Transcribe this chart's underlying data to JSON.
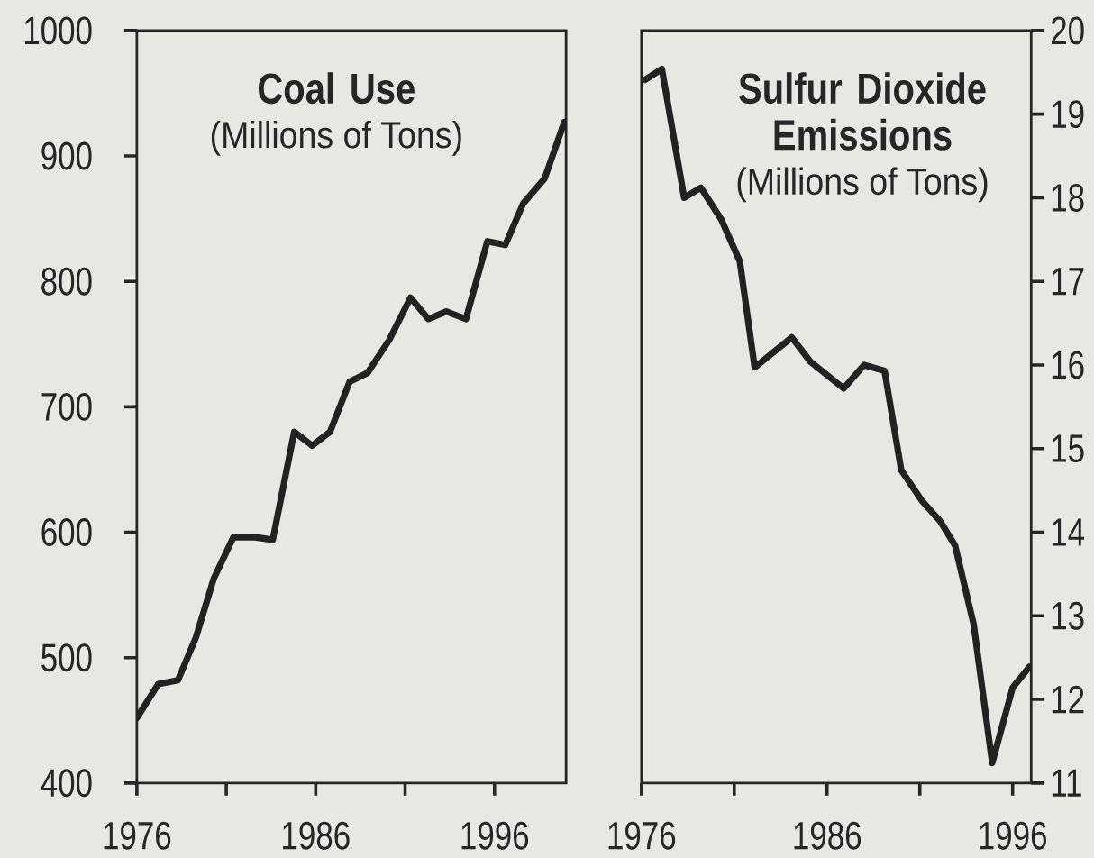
{
  "chart_data": [
    {
      "type": "line",
      "title": "Coal Use",
      "subtitle": "(Millions of Tons)",
      "color": "#222222",
      "x": [
        1976.0,
        1977.2,
        1978.3,
        1979.3,
        1980.3,
        1981.4,
        1982.6,
        1983.6,
        1984.8,
        1985.8,
        1986.8,
        1987.9,
        1988.9,
        1990.1,
        1991.3,
        1992.3,
        1993.3,
        1994.4,
        1995.6,
        1996.6,
        1997.6,
        1998.8,
        1999.9
      ],
      "values": [
        452,
        479,
        482,
        516,
        563,
        596,
        596,
        594,
        680,
        669,
        680,
        720,
        727,
        753,
        787,
        770,
        776,
        770,
        832,
        829,
        862,
        882,
        927
      ],
      "xlim": [
        1976,
        2000
      ],
      "xticks": [
        1976,
        1986,
        1996
      ],
      "ylim": [
        400,
        1000
      ],
      "yticks": [
        400,
        500,
        600,
        700,
        800,
        900,
        1000
      ]
    },
    {
      "type": "line",
      "title": "Sulfur Dioxide Emissions",
      "subtitle": "(Millions of Tons)",
      "x": [
        1976.2,
        1977.1,
        1978.3,
        1979.2,
        1980.3,
        1981.3,
        1982.1,
        1984.1,
        1985.1,
        1986.9,
        1988.0,
        1989.1,
        1990.0,
        1991.1,
        1992.1,
        1992.9,
        1993.9,
        1994.9,
        1996.0,
        1996.9
      ],
      "series": [
        {
          "color": "#222222",
          "axis": "y2",
          "values": [
            19.41,
            19.54,
            18.0,
            18.12,
            17.74,
            17.24,
            15.97,
            16.33,
            16.04,
            15.72,
            16.0,
            15.93,
            14.74,
            14.38,
            14.13,
            13.84,
            12.9,
            11.24,
            12.14,
            12.39
          ]
        }
      ],
      "xlim": [
        1976,
        1997
      ],
      "xticks": [
        1976,
        1986,
        1996
      ],
      "y2lim": [
        11,
        20
      ],
      "y2ticks": [
        11,
        12,
        13,
        14,
        15,
        16,
        17,
        18,
        19,
        20
      ]
    }
  ]
}
